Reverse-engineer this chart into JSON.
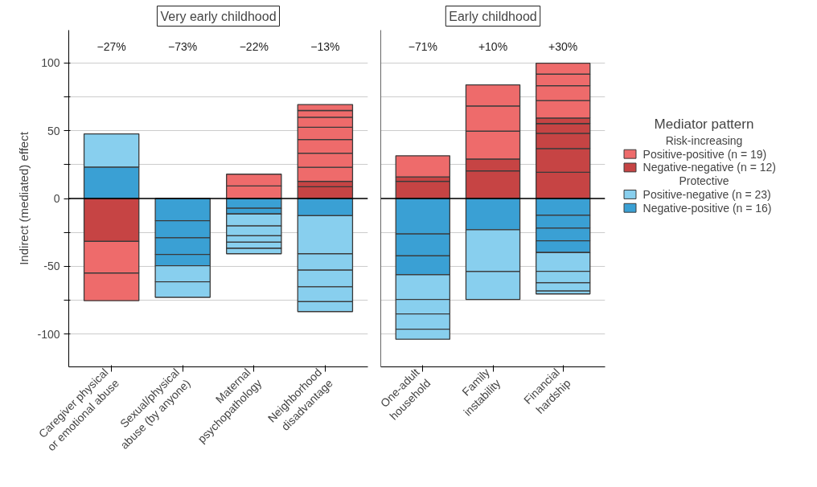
{
  "chart_data": [
    {
      "type": "bar",
      "title": "Very early childhood",
      "ylabel": "Indirect (mediated) effect",
      "stacked": true,
      "grid": "y",
      "categories": [
        "Caregiver physical\nor emotional abuse",
        "Sexual/physical\nabuse (by anyone)",
        "Maternal\npsychopathology",
        "Neighborhood\ndisadvantage"
      ],
      "ylim": [
        -124,
        124
      ],
      "yticks": [
        -100,
        {
          "value": -75,
          "label": null
        },
        -50,
        {
          "value": -25,
          "label": null
        },
        0,
        {
          "value": 25,
          "label": null
        },
        50,
        {
          "value": 75,
          "label": null
        },
        100
      ],
      "ref_lines": [
        {
          "axis": "y",
          "value": 0,
          "label": null,
          "color": "#000000"
        }
      ],
      "annotations": [
        "−27%",
        "−73%",
        "−22%",
        "−13%"
      ],
      "series": [
        {
          "color": "#c64444",
          "values": [
            -31.6,
            null,
            null,
            8.7
          ]
        },
        {
          "color": "#c64444",
          "values": [
            null,
            null,
            null,
            3.9
          ]
        },
        {
          "color": "#3aa0d4",
          "values": [
            23.2,
            -16.3,
            -7.2,
            -12.7
          ]
        },
        {
          "color": "#3aa0d4",
          "values": [
            null,
            -12.6,
            -4.2,
            null
          ]
        },
        {
          "color": "#3aa0d4",
          "values": [
            null,
            -12.3,
            null,
            null
          ]
        },
        {
          "color": "#3aa0d4",
          "values": [
            null,
            -8.3,
            null,
            null
          ]
        },
        {
          "color": "#ee6b6b",
          "values": [
            -23.3,
            null,
            9.2,
            10.4
          ]
        },
        {
          "color": "#ee6b6b",
          "values": [
            -20.4,
            null,
            8.7,
            10.4
          ]
        },
        {
          "color": "#ee6b6b",
          "values": [
            null,
            null,
            null,
            10.0
          ]
        },
        {
          "color": "#ee6b6b",
          "values": [
            null,
            null,
            null,
            9.0
          ]
        },
        {
          "color": "#ee6b6b",
          "values": [
            null,
            null,
            null,
            7.4
          ]
        },
        {
          "color": "#ee6b6b",
          "values": [
            null,
            null,
            null,
            5.0
          ]
        },
        {
          "color": "#ee6b6b",
          "values": [
            null,
            null,
            null,
            4.4
          ]
        },
        {
          "color": "#88cfee",
          "values": [
            24.4,
            -11.8,
            -8.8,
            -28.0
          ]
        },
        {
          "color": "#88cfee",
          "values": [
            null,
            -11.5,
            -7.3,
            -12.1
          ]
        },
        {
          "color": "#88cfee",
          "values": [
            null,
            null,
            -4.7,
            -12.2
          ]
        },
        {
          "color": "#88cfee",
          "values": [
            null,
            null,
            -4.5,
            -11.0
          ]
        },
        {
          "color": "#88cfee",
          "values": [
            null,
            null,
            -4.0,
            -7.3
          ]
        }
      ]
    },
    {
      "type": "bar",
      "title": "Early childhood",
      "stacked": true,
      "grid": "y",
      "tick_labels": "x",
      "legend": "right",
      "legend_title": "Mediator pattern",
      "categories": [
        "One-adult\nhousehold",
        "Family\ninstability",
        "Financial\nhardship"
      ],
      "ylim": [
        -124,
        124
      ],
      "yticks": [
        -100,
        {
          "value": -75,
          "label": null
        },
        -50,
        {
          "value": -25,
          "label": null
        },
        0,
        {
          "value": 25,
          "label": null
        },
        50,
        {
          "value": 75,
          "label": null
        },
        100
      ],
      "ref_lines": [
        {
          "axis": "y",
          "value": 0,
          "label": null,
          "color": "#000000"
        }
      ],
      "annotations": [
        "−71%",
        "+10%",
        "+30%",
        "Risk-increasing",
        "Protective"
      ],
      "series": [
        {
          "name": "Negative-negative (n = 12)",
          "color": "#c64444",
          "values": [
            12.6,
            20.4,
            19.3
          ]
        },
        {
          "color": "#c64444",
          "values": [
            3.3,
            8.7,
            17.5
          ]
        },
        {
          "color": "#c64444",
          "values": [
            null,
            null,
            11.2
          ]
        },
        {
          "color": "#c64444",
          "values": [
            null,
            null,
            7.2
          ]
        },
        {
          "color": "#c64444",
          "values": [
            null,
            null,
            4.1
          ]
        },
        {
          "name": "Negative-positive (n = 16)",
          "color": "#3aa0d4",
          "values": [
            -26.1,
            -23.0,
            -12.4
          ]
        },
        {
          "color": "#3aa0d4",
          "values": [
            -16.1,
            null,
            -9.4
          ]
        },
        {
          "color": "#3aa0d4",
          "values": [
            -14.0,
            null,
            -9.4
          ]
        },
        {
          "color": "#3aa0d4",
          "values": [
            null,
            null,
            -8.6
          ]
        },
        {
          "name": "Positive-positive (n = 19)",
          "color": "#ee6b6b",
          "values": [
            15.6,
            20.6,
            12.8
          ]
        },
        {
          "color": "#ee6b6b",
          "values": [
            null,
            18.5,
            11.0
          ]
        },
        {
          "color": "#ee6b6b",
          "values": [
            null,
            15.5,
            8.5
          ]
        },
        {
          "color": "#ee6b6b",
          "values": [
            null,
            null,
            8.0
          ]
        },
        {
          "name": "Positive-negative (n = 23)",
          "color": "#88cfee",
          "values": [
            -18.2,
            -30.8,
            -13.8
          ]
        },
        {
          "color": "#88cfee",
          "values": [
            -10.6,
            -20.6,
            -8.5
          ]
        },
        {
          "color": "#88cfee",
          "values": [
            -11.2,
            null,
            -6.0
          ]
        },
        {
          "color": "#88cfee",
          "values": [
            -7.5,
            null,
            -2.2
          ]
        }
      ]
    }
  ]
}
